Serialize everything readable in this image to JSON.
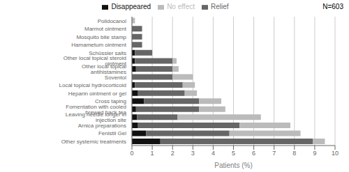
{
  "chart_data": {
    "type": "bar",
    "orientation": "horizontal",
    "stacked": true,
    "xlabel": "Patients (%)",
    "annotation": "N=603",
    "categories": [
      "Other systemic treatments",
      "Fenistil Gel",
      "Arnica preparations",
      "Leaving needle longer in injection site",
      "Fomentation with cooled brewed back tea",
      "Cross taping",
      "Heparin ointment or gel",
      "Local topical hydrocorticoid",
      "Soventol",
      "Other local topical antihistamines",
      "Other local topical steroid ointment",
      "Schüssler salts",
      "Hamametum ointment",
      "Mosquito bite stamp",
      "Marmot ointment",
      "Polidocanol"
    ],
    "series": [
      {
        "name": "Disappeared",
        "color": "#111111",
        "values": [
          1.4,
          0.7,
          0.3,
          0.25,
          0.2,
          0.6,
          0.3,
          0.15,
          0.0,
          0.2,
          0.15,
          0.15,
          0.0,
          0.0,
          0.0,
          0.0
        ]
      },
      {
        "name": "Relief",
        "color": "#666666",
        "values": [
          7.5,
          4.1,
          5.0,
          2.0,
          3.1,
          2.7,
          2.3,
          2.35,
          2.0,
          1.8,
          1.85,
          0.85,
          0.5,
          0.5,
          0.5,
          0.0
        ]
      },
      {
        "name": "No effect",
        "color": "#bbbbbb",
        "values": [
          0.6,
          3.5,
          2.5,
          4.1,
          1.3,
          1.1,
          0.6,
          0.6,
          1.0,
          0.3,
          0.2,
          0.0,
          0.0,
          0.0,
          0.0,
          0.15
        ]
      }
    ],
    "xlim": [
      0,
      10
    ],
    "xticks": [
      0,
      1,
      2,
      3,
      4,
      5,
      6,
      7,
      8,
      9,
      10
    ],
    "grid": true,
    "legend": "top"
  }
}
